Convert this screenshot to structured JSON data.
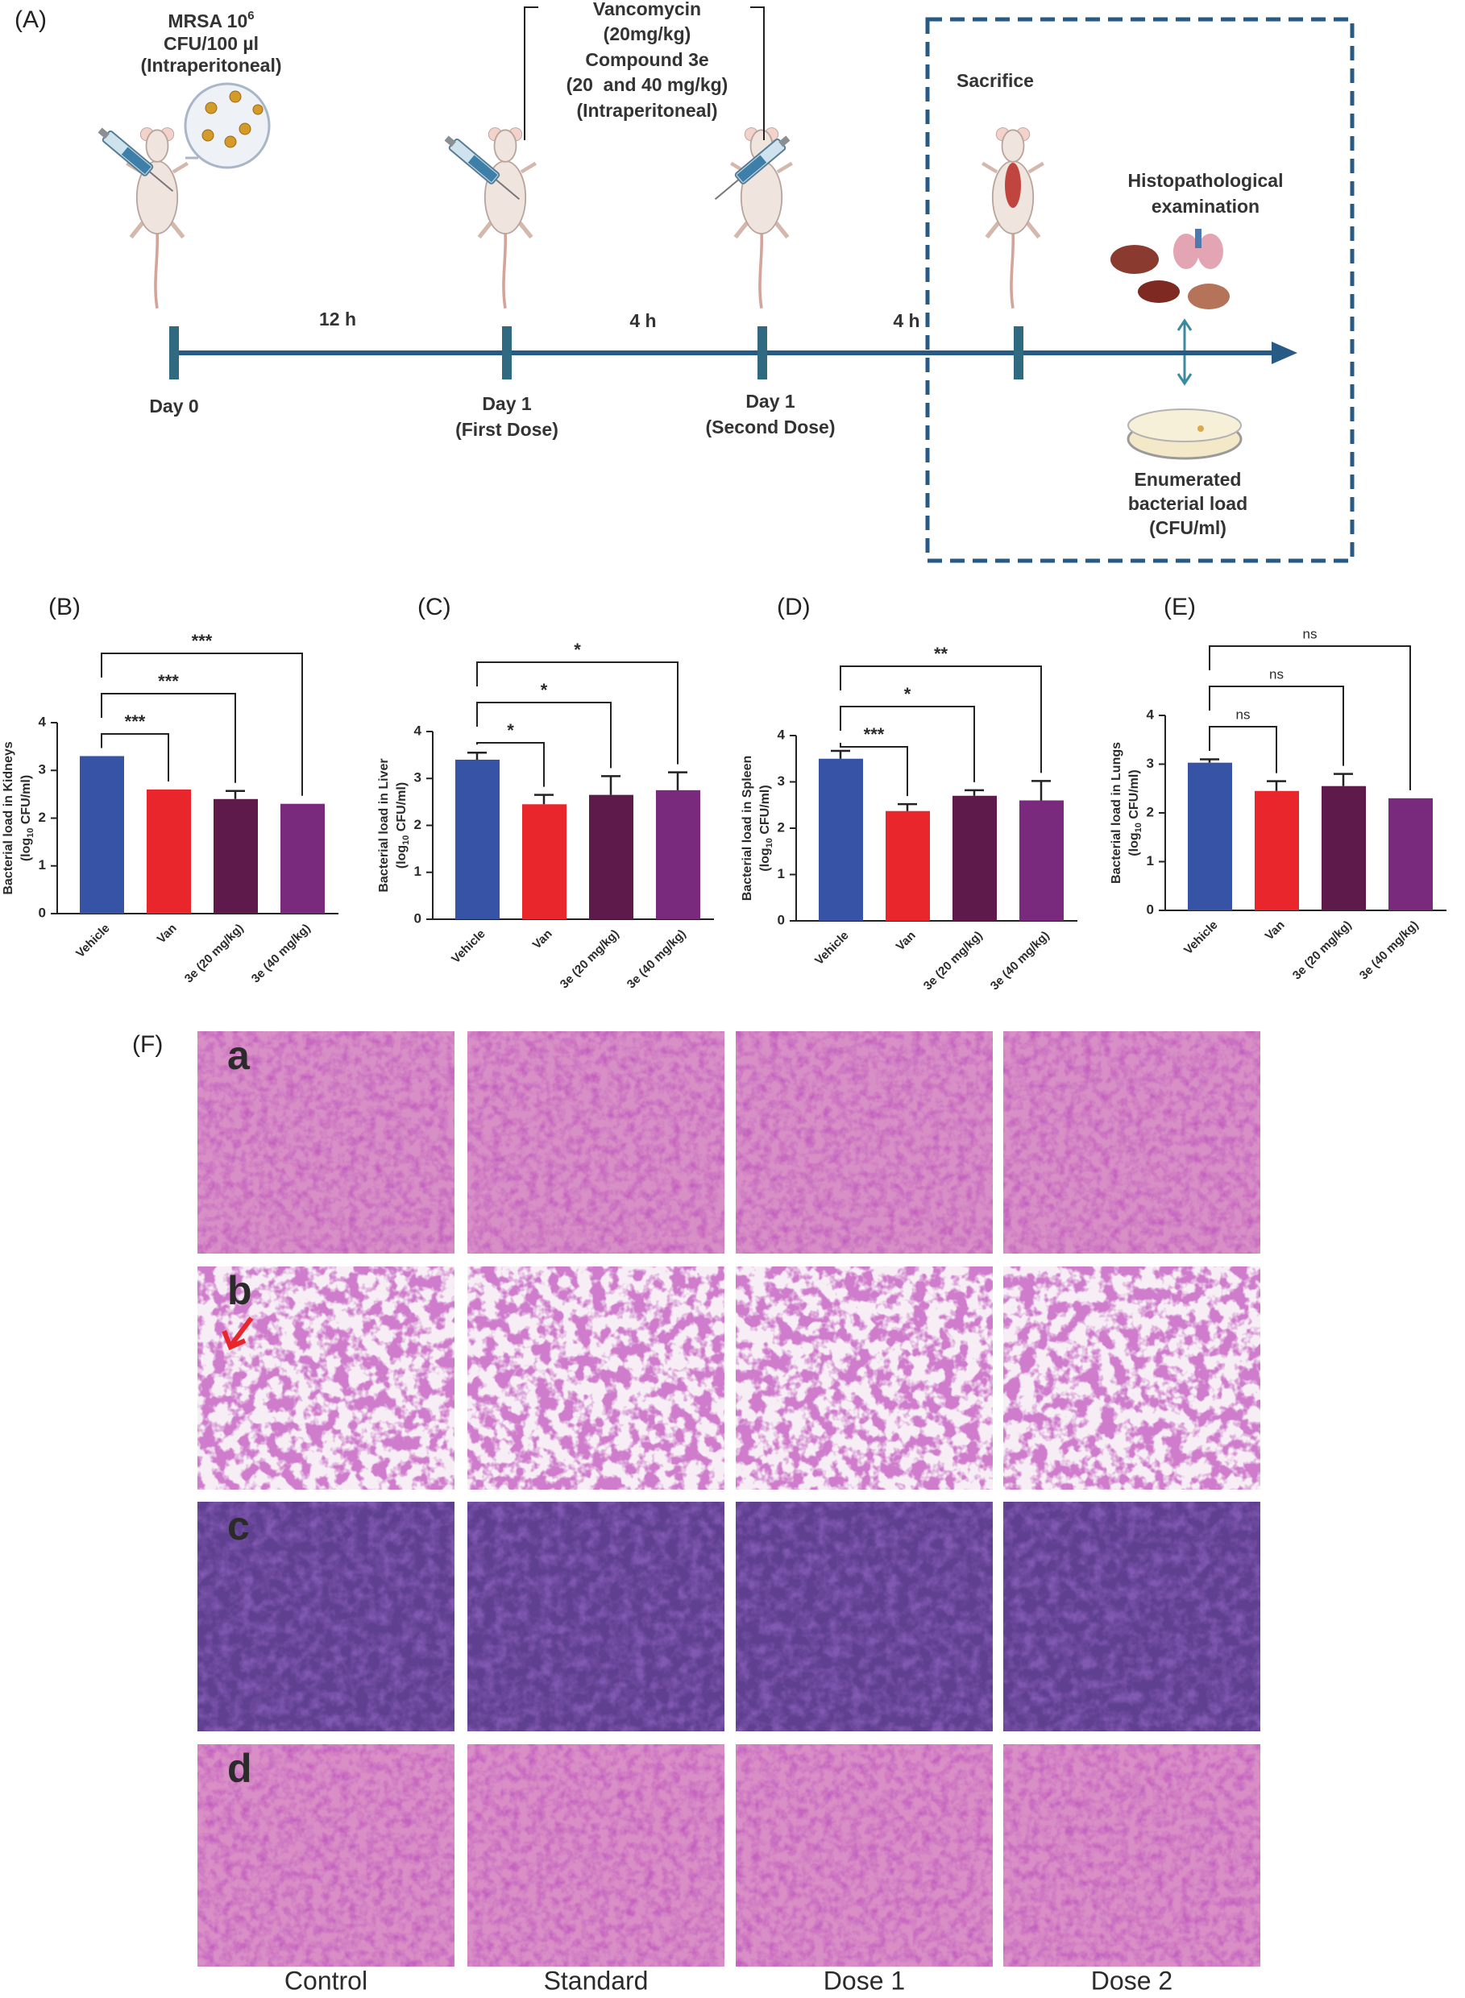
{
  "schematic": {
    "panel": "(A)",
    "inoculum": {
      "name": "MRSA 10",
      "exponent": "6",
      "dose": "CFU/100 µl",
      "route": "(Intraperitoneal)"
    },
    "treatment": [
      "Vancomycin",
      "(20mg/kg)",
      "Compound 3e",
      "(20  and 40 mg/kg)",
      "(Intraperitoneal)"
    ],
    "sacrifice": "Sacrifice",
    "histopathology": [
      "Histopathological",
      "examination"
    ],
    "enumeration": [
      "Enumerated",
      "bacterial load",
      "(CFU/ml)"
    ],
    "intervals": [
      "12 h",
      "4 h",
      "4 h"
    ],
    "timepoints": [
      {
        "day": "Day 0"
      },
      {
        "day": "Day 1",
        "dose": "(First Dose)"
      },
      {
        "day": "Day 1",
        "dose": "(Second Dose)"
      }
    ]
  },
  "chart_data": [
    {
      "type": "bar",
      "panel": "(B)",
      "ylabel": "Bacterial load in Kidneys",
      "yunit": [
        "(log",
        "10",
        " CFU/ml)"
      ],
      "categories": [
        "Vehicle",
        "Van",
        "3e (20 mg/kg)",
        "3e (40 mg/kg)"
      ],
      "values": [
        3.3,
        2.6,
        2.4,
        2.3
      ],
      "errors": [
        null,
        null,
        0.17,
        null
      ],
      "colors": [
        "#3753a5",
        "#e8262b",
        "#5d1a4a",
        "#7a2a7c"
      ],
      "significance": [
        null,
        "***",
        "***",
        "***"
      ],
      "ylim": [
        0,
        4
      ],
      "yticks": [
        0,
        1,
        2,
        3,
        4
      ]
    },
    {
      "type": "bar",
      "panel": "(C)",
      "ylabel": "Bacterial load in Liver",
      "yunit": [
        "(log",
        "10",
        " CFU/ml)"
      ],
      "categories": [
        "Vehicle",
        "Van",
        "3e (20 mg/kg)",
        "3e (40 mg/kg)"
      ],
      "values": [
        3.4,
        2.45,
        2.65,
        2.75
      ],
      "errors": [
        0.15,
        0.2,
        0.4,
        0.38
      ],
      "colors": [
        "#3753a5",
        "#e8262b",
        "#5d1a4a",
        "#7a2a7c"
      ],
      "significance": [
        null,
        "*",
        "*",
        "*"
      ],
      "ylim": [
        0,
        4
      ],
      "yticks": [
        0,
        1,
        2,
        3,
        4
      ]
    },
    {
      "type": "bar",
      "panel": "(D)",
      "ylabel": "Bacterial load in Spleen",
      "yunit": [
        "(log",
        "10",
        " CFU/ml)"
      ],
      "categories": [
        "Vehicle",
        "Van",
        "3e (20 mg/kg)",
        "3e (40 mg/kg)"
      ],
      "values": [
        3.5,
        2.37,
        2.7,
        2.6
      ],
      "errors": [
        0.17,
        0.15,
        0.12,
        0.42
      ],
      "colors": [
        "#3753a5",
        "#e8262b",
        "#5d1a4a",
        "#7a2a7c"
      ],
      "significance": [
        null,
        "***",
        "*",
        "**"
      ],
      "ylim": [
        0,
        4
      ],
      "yticks": [
        0,
        1,
        2,
        3,
        4
      ]
    },
    {
      "type": "bar",
      "panel": "(E)",
      "ylabel": "Bacterial load in Lungs",
      "yunit": [
        "(log",
        "10",
        " CFU/ml)"
      ],
      "categories": [
        "Vehicle",
        "Van",
        "3e (20 mg/kg)",
        "3e (40 mg/kg)"
      ],
      "values": [
        3.03,
        2.45,
        2.55,
        2.3
      ],
      "errors": [
        0.07,
        0.2,
        0.25,
        null
      ],
      "colors": [
        "#3753a5",
        "#e8262b",
        "#5d1a4a",
        "#7a2a7c"
      ],
      "significance": [
        null,
        "ns",
        "ns",
        "ns"
      ],
      "ylim": [
        0,
        4
      ],
      "yticks": [
        0,
        1,
        2,
        3,
        4
      ]
    }
  ],
  "histology": {
    "panel": "(F)",
    "rows": [
      "a",
      "b",
      "c",
      "d"
    ],
    "columns": [
      "Control",
      "Standard",
      "Dose 1",
      "Dose 2"
    ]
  }
}
